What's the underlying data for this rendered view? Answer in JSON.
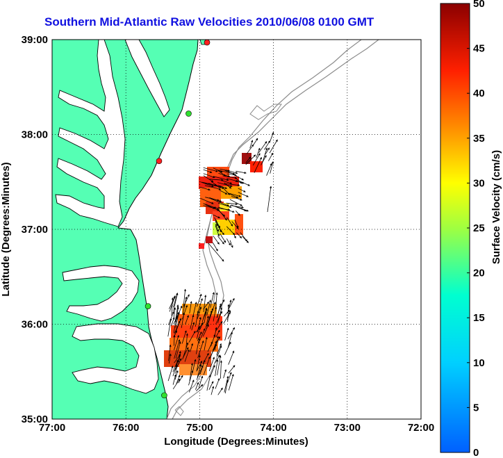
{
  "title": "Southern Mid-Atlantic Raw Velocities 2010/06/08 0100 GMT",
  "map": {
    "xlabel": "Longitude (Degrees:Minutes)",
    "ylabel": "Latitude (Degrees:Minutes)",
    "x_ticks": [
      "77:00",
      "76:00",
      "75:00",
      "74:00",
      "73:00",
      "72:00"
    ],
    "y_ticks": [
      "39:00",
      "38:00",
      "37:00",
      "36:00",
      "35:00"
    ],
    "lon_range": [
      -77,
      -72
    ],
    "lat_range": [
      35,
      39
    ],
    "land_color": "#55ffb4",
    "grid": "dotted",
    "stations": [
      {
        "lon": -74.9,
        "lat": 38.97,
        "color": "#ff2020"
      },
      {
        "lon": -75.15,
        "lat": 38.22,
        "color": "#30e030"
      },
      {
        "lon": -75.55,
        "lat": 37.72,
        "color": "#ff2020"
      },
      {
        "lon": -75.7,
        "lat": 36.19,
        "color": "#30e030"
      },
      {
        "lon": -75.48,
        "lat": 35.25,
        "color": "#30e030"
      }
    ]
  },
  "colorbar": {
    "label": "Surface Velocity (cm/s)",
    "ticks": [
      "50",
      "45",
      "40",
      "35",
      "30",
      "25",
      "20",
      "15",
      "10",
      "5",
      "0"
    ],
    "colors": [
      "#8b0000",
      "#ff2020",
      "#ff8000",
      "#ffff00",
      "#00ffff",
      "#0060ff"
    ]
  }
}
